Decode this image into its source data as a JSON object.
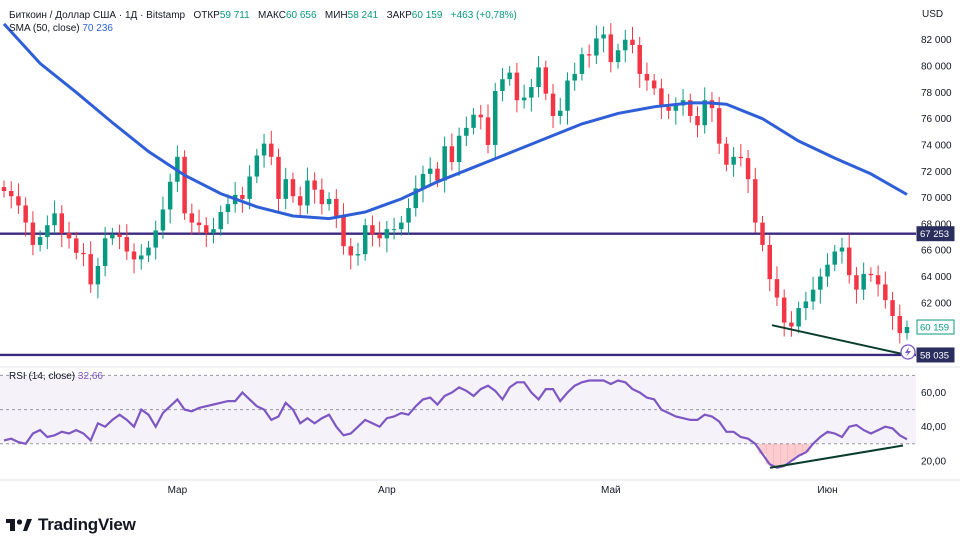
{
  "header": {
    "symbol": "Биткоин / Доллар США · 1Д · Bitstamp",
    "open_label": "ОТКР",
    "open_value": "59 711",
    "high_label": "МАКС",
    "high_value": "60 656",
    "low_label": "МИН",
    "low_value": "58 241",
    "close_label": "ЗАКР",
    "close_value": "60 159",
    "change": "+463 (+0,78%)",
    "sma_label": "SMA (50, close)",
    "sma_value": "70 236",
    "currency": "USD"
  },
  "rsi_panel": {
    "label": "RSI (14, close)",
    "value": "32,66"
  },
  "brand": {
    "name": "TradingView"
  },
  "colors": {
    "up": "#089981",
    "down": "#f23645",
    "sma": "#2f5fd6",
    "rsi": "#7e57c2",
    "level": "#3b2a7f",
    "trend": "#0b3d2e",
    "label_dark": "#2a2e5e"
  },
  "chart_data": [
    {
      "type": "candlestick",
      "title": "",
      "y_ticks": [
        "82 000",
        "80 000",
        "78 000",
        "76 000",
        "74 000",
        "72 000",
        "70 000",
        "68 000",
        "66 000",
        "64 000",
        "62 000"
      ],
      "x_ticks": [
        "Мар",
        "Апр",
        "Май",
        "Июн"
      ],
      "ylim": [
        57500,
        83500
      ],
      "price_labels": [
        {
          "value": "67 253",
          "kind": "level"
        },
        {
          "value": "60 159",
          "kind": "last"
        },
        {
          "value": "58 035",
          "kind": "level"
        }
      ],
      "horizontal_levels": [
        67253,
        58035
      ],
      "trend_line": [
        {
          "index": 0,
          "value": 60300
        },
        {
          "index": 1,
          "value": 58100
        }
      ],
      "closes": [
        70500,
        70100,
        69400,
        68100,
        66400,
        67000,
        67900,
        68800,
        67300,
        66900,
        65800,
        65700,
        63400,
        64800,
        66900,
        67200,
        67000,
        65900,
        65300,
        65600,
        66200,
        67500,
        69100,
        71200,
        73100,
        68800,
        68100,
        67900,
        67300,
        67600,
        68900,
        69500,
        70200,
        69900,
        71600,
        73200,
        74100,
        73100,
        69900,
        71400,
        70100,
        69400,
        71300,
        70600,
        69500,
        69900,
        68600,
        66300,
        65600,
        65700,
        67900,
        67200,
        66900,
        67600,
        67600,
        68100,
        69200,
        70700,
        71800,
        72200,
        71300,
        73900,
        72700,
        74700,
        75300,
        76300,
        76100,
        74000,
        78100,
        79000,
        79500,
        77400,
        77600,
        78400,
        79900,
        77900,
        76200,
        76600,
        78900,
        79400,
        80900,
        80800,
        82100,
        82400,
        80300,
        81200,
        82000,
        81600,
        79400,
        78900,
        78300,
        76900,
        76600,
        77000,
        77400,
        76200,
        75500,
        77400,
        76800,
        74100,
        72500,
        73100,
        73000,
        71400,
        68100,
        66400,
        63800,
        62400,
        60500,
        60200,
        61600,
        62100,
        63000,
        64000,
        64900,
        65900,
        66200,
        64100,
        63000,
        64200,
        64100,
        63400,
        62200,
        61000,
        59700,
        60159
      ],
      "sma": [
        [
          0,
          83200
        ],
        [
          10,
          80200
        ],
        [
          20,
          78000
        ],
        [
          30,
          75700
        ],
        [
          40,
          73500
        ],
        [
          50,
          71700
        ],
        [
          60,
          70300
        ],
        [
          70,
          69300
        ],
        [
          80,
          68600
        ],
        [
          85,
          68500
        ],
        [
          90,
          68400
        ],
        [
          100,
          68900
        ],
        [
          110,
          69900
        ],
        [
          120,
          71200
        ],
        [
          130,
          72300
        ],
        [
          140,
          73400
        ],
        [
          150,
          74500
        ],
        [
          160,
          75600
        ],
        [
          170,
          76400
        ],
        [
          180,
          76900
        ],
        [
          190,
          77200
        ],
        [
          195,
          77200
        ],
        [
          200,
          77100
        ],
        [
          210,
          76000
        ],
        [
          220,
          74300
        ],
        [
          230,
          73000
        ],
        [
          240,
          71800
        ],
        [
          250,
          70236
        ]
      ]
    },
    {
      "type": "line",
      "title": "",
      "series": [
        {
          "values": [
            32,
            33,
            31,
            30,
            36,
            38,
            34,
            35,
            37,
            36,
            38,
            36,
            32,
            42,
            40,
            44,
            47,
            44,
            40,
            50,
            47,
            40,
            48,
            52,
            56,
            50,
            49,
            51,
            52,
            53,
            54,
            55,
            55,
            60,
            56,
            52,
            50,
            44,
            46,
            54,
            50,
            42,
            45,
            42,
            45,
            47,
            40,
            35,
            36,
            40,
            44,
            42,
            40,
            45,
            46,
            48,
            47,
            52,
            56,
            57,
            53,
            58,
            60,
            63,
            61,
            58,
            62,
            64,
            61,
            56,
            63,
            66,
            66,
            60,
            56,
            62,
            62,
            55,
            60,
            64,
            66,
            67,
            67,
            67,
            65,
            67,
            66,
            62,
            60,
            57,
            56,
            50,
            48,
            46,
            45,
            44,
            44,
            47,
            46,
            43,
            37,
            37,
            34,
            33,
            30,
            24,
            18,
            16,
            17,
            20,
            23,
            25,
            30,
            34,
            37,
            36,
            34,
            40,
            41,
            38,
            36,
            38,
            40,
            39,
            35,
            32.66
          ]
        }
      ],
      "y_ticks": [
        "60,00",
        "40,00",
        "20,00"
      ],
      "ylim": [
        10,
        72
      ],
      "zone": [
        30,
        70
      ],
      "trend_line": [
        {
          "index": 0,
          "value": 16
        },
        {
          "index": 1,
          "value": 29
        }
      ]
    }
  ]
}
